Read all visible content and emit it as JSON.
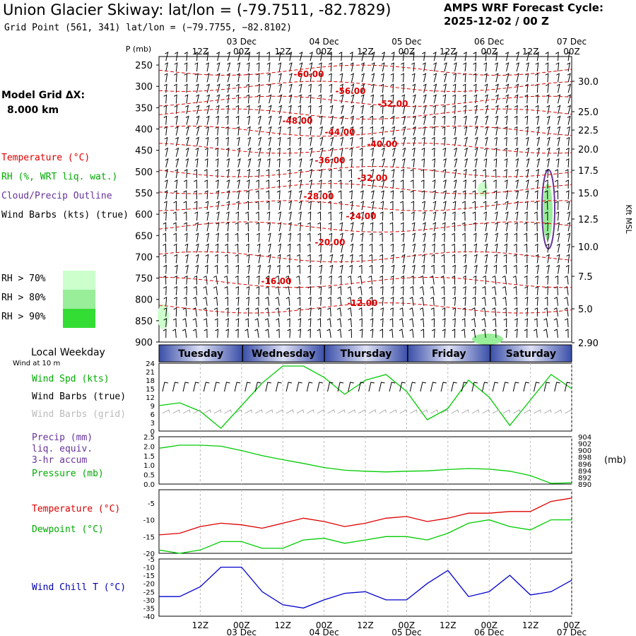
{
  "header": {
    "title": "Union Glacier Skiway:  lat/lon = (-79.7511, -82.7829)",
    "subtitle": "Grid Point (561, 341) lat/lon = (−79.7755, −82.8102)",
    "cycle_line1": "AMPS WRF Forecast Cycle:",
    "cycle_line2": "2025-12-02 / 00  Z"
  },
  "model_grid": {
    "label": "Model Grid ΔX:",
    "value": "8.000 km"
  },
  "legend": {
    "temperature": "Temperature (°C)",
    "rh": "RH (%, WRT liq. wat.)",
    "cloud": "Cloud/Precip Outline",
    "wind": "Wind Barbs (kts) (true)",
    "rh_levels": [
      {
        "label": "RH > 70%",
        "color": "#ccffcc"
      },
      {
        "label": "RH > 80%",
        "color": "#99ee99"
      },
      {
        "label": "RH > 90%",
        "color": "#33dd33"
      }
    ]
  },
  "colors": {
    "temp": "#dd0000",
    "dew": "#00cc00",
    "chill": "#0000cc",
    "precip": "#663399",
    "cloud": "#663399",
    "wind_grid": "#aaaaaa"
  },
  "time_axis": {
    "top_labels": [
      "12Z",
      "00Z",
      "12Z",
      "00Z",
      "12Z",
      "00Z",
      "12Z",
      "00Z",
      "12Z",
      "00Z"
    ],
    "date_labels": [
      "03 Dec",
      "04 Dec",
      "05 Dec",
      "06 Dec",
      "07 Dec"
    ],
    "day_labels": [
      "Tuesday",
      "Wednesday",
      "Thursday",
      "Friday",
      "Saturday"
    ],
    "local_weekday": "Local Weekday"
  },
  "upper_air": {
    "p_axis_label": "P (mb)",
    "pressure_ticks": [
      "250",
      "300",
      "350",
      "400",
      "450",
      "500",
      "550",
      "600",
      "650",
      "700",
      "750",
      "800",
      "850",
      "900"
    ],
    "height_ticks": [
      "30.0",
      "25.0",
      "22.5",
      "20.0",
      "17.5",
      "15.0",
      "12.5",
      "10.0",
      "7.5",
      "5.0",
      "2.90"
    ],
    "height_axis_label": "Kft MSL",
    "isotherm_labels": [
      "-60.00",
      "-56.00",
      "-52.00",
      "-48.00",
      "-44.00",
      "-40.00",
      "-36.00",
      "-32.00",
      "-28.00",
      "-24.00",
      "-20.00",
      "-16.00",
      "-12.00"
    ]
  },
  "surface_wind": {
    "note": "Wind at 10 m",
    "label_speed": "Wind Spd (kts)",
    "label_true": "Wind Barbs (true)",
    "label_grid": "Wind Barbs (grid)",
    "ticks": [
      "24",
      "21",
      "18",
      "15",
      "12",
      "9",
      "6",
      "3",
      "0"
    ]
  },
  "precip_panel": {
    "label_precip": "Precip (mm)",
    "label_liq": "liq. equiv.",
    "label_accum": "3-hr accum",
    "label_pressure": "Pressure (mb)",
    "left_ticks": [
      "2.5",
      "2.0",
      "1.5",
      "1.0",
      "0.5",
      "0.0"
    ],
    "right_ticks": [
      "904",
      "902",
      "900",
      "898",
      "896",
      "894",
      "892",
      "890"
    ],
    "right_unit": "(mb)"
  },
  "temp_panel": {
    "label_temp": "Temperature (°C)",
    "label_dew": "Dewpoint (°C)",
    "ticks": [
      "-5",
      "-10",
      "-15",
      "-20"
    ]
  },
  "chill_panel": {
    "label": "Wind Chill T (°C)",
    "ticks": [
      "-5",
      "-10",
      "-15",
      "-20",
      "-25",
      "-30",
      "-35",
      "-40"
    ]
  },
  "chart_data": [
    {
      "type": "line",
      "ylabel": "Wind Spd (kts)",
      "ylim": [
        0,
        24
      ],
      "x_hours": [
        0,
        6,
        12,
        18,
        24,
        30,
        36,
        42,
        48,
        54,
        60,
        66,
        72,
        78,
        84,
        90,
        96,
        102,
        108,
        114,
        120
      ],
      "series": [
        {
          "name": "Wind Spd (kts)",
          "values": [
            9,
            10,
            7,
            1,
            9,
            17,
            23,
            23,
            19,
            13,
            18,
            20,
            14,
            4,
            8,
            18,
            12,
            2,
            11,
            20,
            15
          ]
        }
      ]
    },
    {
      "type": "line",
      "ylim": [
        890,
        904
      ],
      "x_hours": [
        0,
        6,
        12,
        18,
        24,
        30,
        36,
        42,
        48,
        54,
        60,
        66,
        72,
        78,
        84,
        90,
        96,
        102,
        108,
        114,
        120
      ],
      "series": [
        {
          "name": "Pressure (mb)",
          "values": [
            900.6,
            901.5,
            901.5,
            901.2,
            899.9,
            898.4,
            897.2,
            896.1,
            894.9,
            894.1,
            893.8,
            893.6,
            893.8,
            893.9,
            894.3,
            894.6,
            894.4,
            893.8,
            892.5,
            890.2,
            890.4
          ]
        }
      ]
    },
    {
      "type": "line",
      "ylim": [
        -20,
        -1
      ],
      "x_hours": [
        0,
        6,
        12,
        18,
        24,
        30,
        36,
        42,
        48,
        54,
        60,
        66,
        72,
        78,
        84,
        90,
        96,
        102,
        108,
        114,
        120
      ],
      "series": [
        {
          "name": "Temperature (°C)",
          "values": [
            -14.5,
            -14,
            -12,
            -11,
            -11.5,
            -12.5,
            -11,
            -9.5,
            -10.5,
            -12,
            -11,
            -9.5,
            -9,
            -10.5,
            -9.5,
            -8,
            -8,
            -7.5,
            -7.5,
            -4.5,
            -3.5
          ]
        },
        {
          "name": "Dewpoint (°C)",
          "values": [
            -19,
            -20,
            -19,
            -16.5,
            -16.5,
            -18.5,
            -18.5,
            -16,
            -15.5,
            -17,
            -16,
            -15,
            -15,
            -16,
            -14,
            -11,
            -10,
            -12,
            -13,
            -10,
            -10
          ]
        }
      ]
    },
    {
      "type": "line",
      "ylim": [
        -40,
        -5
      ],
      "x_hours": [
        0,
        6,
        12,
        18,
        24,
        30,
        36,
        42,
        48,
        54,
        60,
        66,
        72,
        78,
        84,
        90,
        96,
        102,
        108,
        114,
        120
      ],
      "series": [
        {
          "name": "Wind Chill T (°C)",
          "values": [
            -28,
            -28,
            -22,
            -10,
            -10,
            -25,
            -33,
            -35,
            -30,
            -26,
            -25,
            -30,
            -30,
            -20,
            -12,
            -28,
            -25,
            -15,
            -27,
            -25,
            -18
          ]
        }
      ]
    }
  ]
}
